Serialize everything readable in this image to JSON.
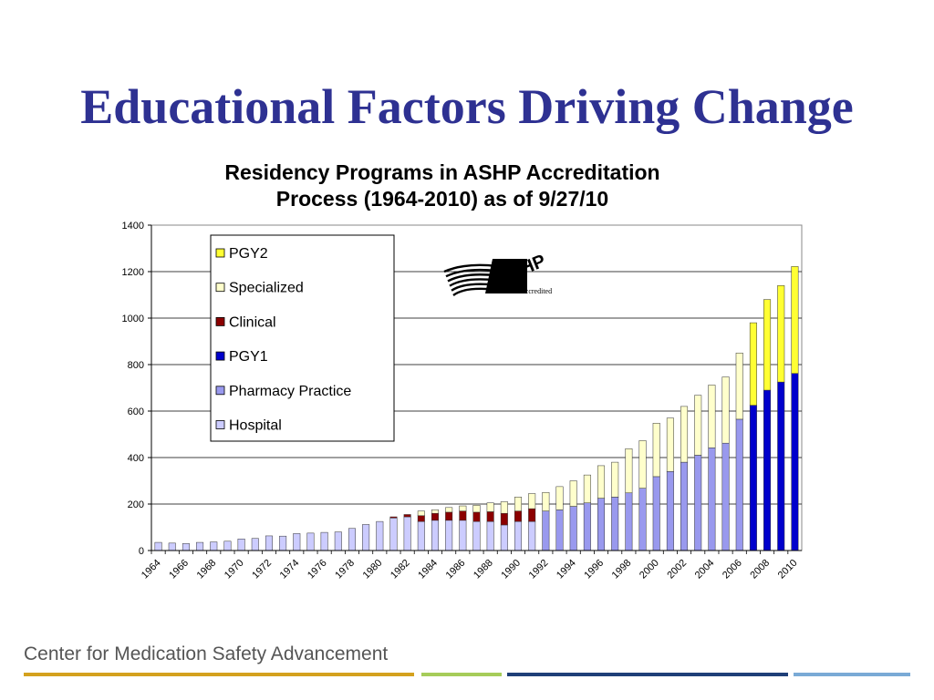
{
  "slide": {
    "title": "Educational Factors Driving Change",
    "footer": "Center for Medication Safety Advancement",
    "footer_bar_colors": [
      "#d4a11e",
      "#a6cc5a",
      "#1f3f78",
      "#7aaad6"
    ]
  },
  "logo": {
    "text": "ASHP",
    "subtext": "Accredited"
  },
  "chart_data": {
    "type": "bar",
    "stacked": true,
    "title_lines": [
      "Residency Programs in ASHP Accreditation",
      "Process (1964-2010) as of 9/27/10"
    ],
    "ylim": [
      0,
      1400
    ],
    "yticks": [
      0,
      200,
      400,
      600,
      800,
      1000,
      1200,
      1400
    ],
    "grid": true,
    "legend_position": "top-left",
    "categories": [
      "1964",
      "1965",
      "1966",
      "1967",
      "1968",
      "1969",
      "1970",
      "1971",
      "1972",
      "1973",
      "1974",
      "1975",
      "1976",
      "1977",
      "1978",
      "1979",
      "1980",
      "1981",
      "1982",
      "1983",
      "1984",
      "1985",
      "1986",
      "1987",
      "1988",
      "1989",
      "1990",
      "1991",
      "1992",
      "1993",
      "1994",
      "1995",
      "1996",
      "1997",
      "1998",
      "1999",
      "2000",
      "2001",
      "2002",
      "2003",
      "2004",
      "2005",
      "2006",
      "2007",
      "2008",
      "2009",
      "2010"
    ],
    "series": [
      {
        "name": "Hospital",
        "color": "#ccccff",
        "values": [
          35,
          32,
          30,
          35,
          37,
          40,
          50,
          52,
          63,
          62,
          73,
          75,
          78,
          80,
          95,
          112,
          125,
          140,
          145,
          125,
          130,
          130,
          130,
          125,
          125,
          110,
          125,
          125,
          0,
          0,
          0,
          0,
          0,
          0,
          0,
          0,
          0,
          0,
          0,
          0,
          0,
          0,
          0,
          0,
          0,
          0,
          0
        ]
      },
      {
        "name": "Pharmacy Practice",
        "color": "#9999ee",
        "values": [
          0,
          0,
          0,
          0,
          0,
          0,
          0,
          0,
          0,
          0,
          0,
          0,
          0,
          0,
          0,
          0,
          0,
          0,
          0,
          0,
          0,
          0,
          0,
          0,
          0,
          0,
          0,
          0,
          170,
          175,
          190,
          205,
          225,
          230,
          248,
          268,
          318,
          340,
          380,
          410,
          442,
          462,
          565,
          0,
          0,
          0,
          0
        ]
      },
      {
        "name": "PGY1",
        "color": "#0000cc",
        "values": [
          0,
          0,
          0,
          0,
          0,
          0,
          0,
          0,
          0,
          0,
          0,
          0,
          0,
          0,
          0,
          0,
          0,
          0,
          0,
          0,
          0,
          0,
          0,
          0,
          0,
          0,
          0,
          0,
          0,
          0,
          0,
          0,
          0,
          0,
          0,
          0,
          0,
          0,
          0,
          0,
          0,
          0,
          0,
          625,
          690,
          725,
          762
        ]
      },
      {
        "name": "Clinical",
        "color": "#8b0000",
        "values": [
          0,
          0,
          0,
          0,
          0,
          0,
          0,
          0,
          0,
          0,
          0,
          0,
          0,
          0,
          0,
          0,
          0,
          5,
          10,
          25,
          30,
          35,
          40,
          40,
          42,
          50,
          45,
          55,
          0,
          0,
          0,
          0,
          0,
          0,
          0,
          0,
          0,
          0,
          0,
          0,
          0,
          0,
          0,
          0,
          0,
          0,
          0
        ]
      },
      {
        "name": "Specialized",
        "color": "#ffffcc",
        "values": [
          0,
          0,
          0,
          0,
          0,
          0,
          0,
          0,
          0,
          0,
          0,
          0,
          0,
          0,
          0,
          0,
          0,
          0,
          0,
          20,
          15,
          20,
          22,
          30,
          38,
          50,
          60,
          65,
          80,
          100,
          110,
          120,
          140,
          150,
          190,
          205,
          230,
          230,
          240,
          258,
          270,
          285,
          285,
          0,
          0,
          0,
          0
        ]
      },
      {
        "name": "PGY2",
        "color": "#ffff33",
        "values": [
          0,
          0,
          0,
          0,
          0,
          0,
          0,
          0,
          0,
          0,
          0,
          0,
          0,
          0,
          0,
          0,
          0,
          0,
          0,
          0,
          0,
          0,
          0,
          0,
          0,
          0,
          0,
          0,
          0,
          0,
          0,
          0,
          0,
          0,
          0,
          0,
          0,
          0,
          0,
          0,
          0,
          0,
          0,
          355,
          390,
          415,
          460
        ]
      }
    ],
    "legend_order": [
      "PGY2",
      "Specialized",
      "Clinical",
      "PGY1",
      "Pharmacy Practice",
      "Hospital"
    ]
  }
}
